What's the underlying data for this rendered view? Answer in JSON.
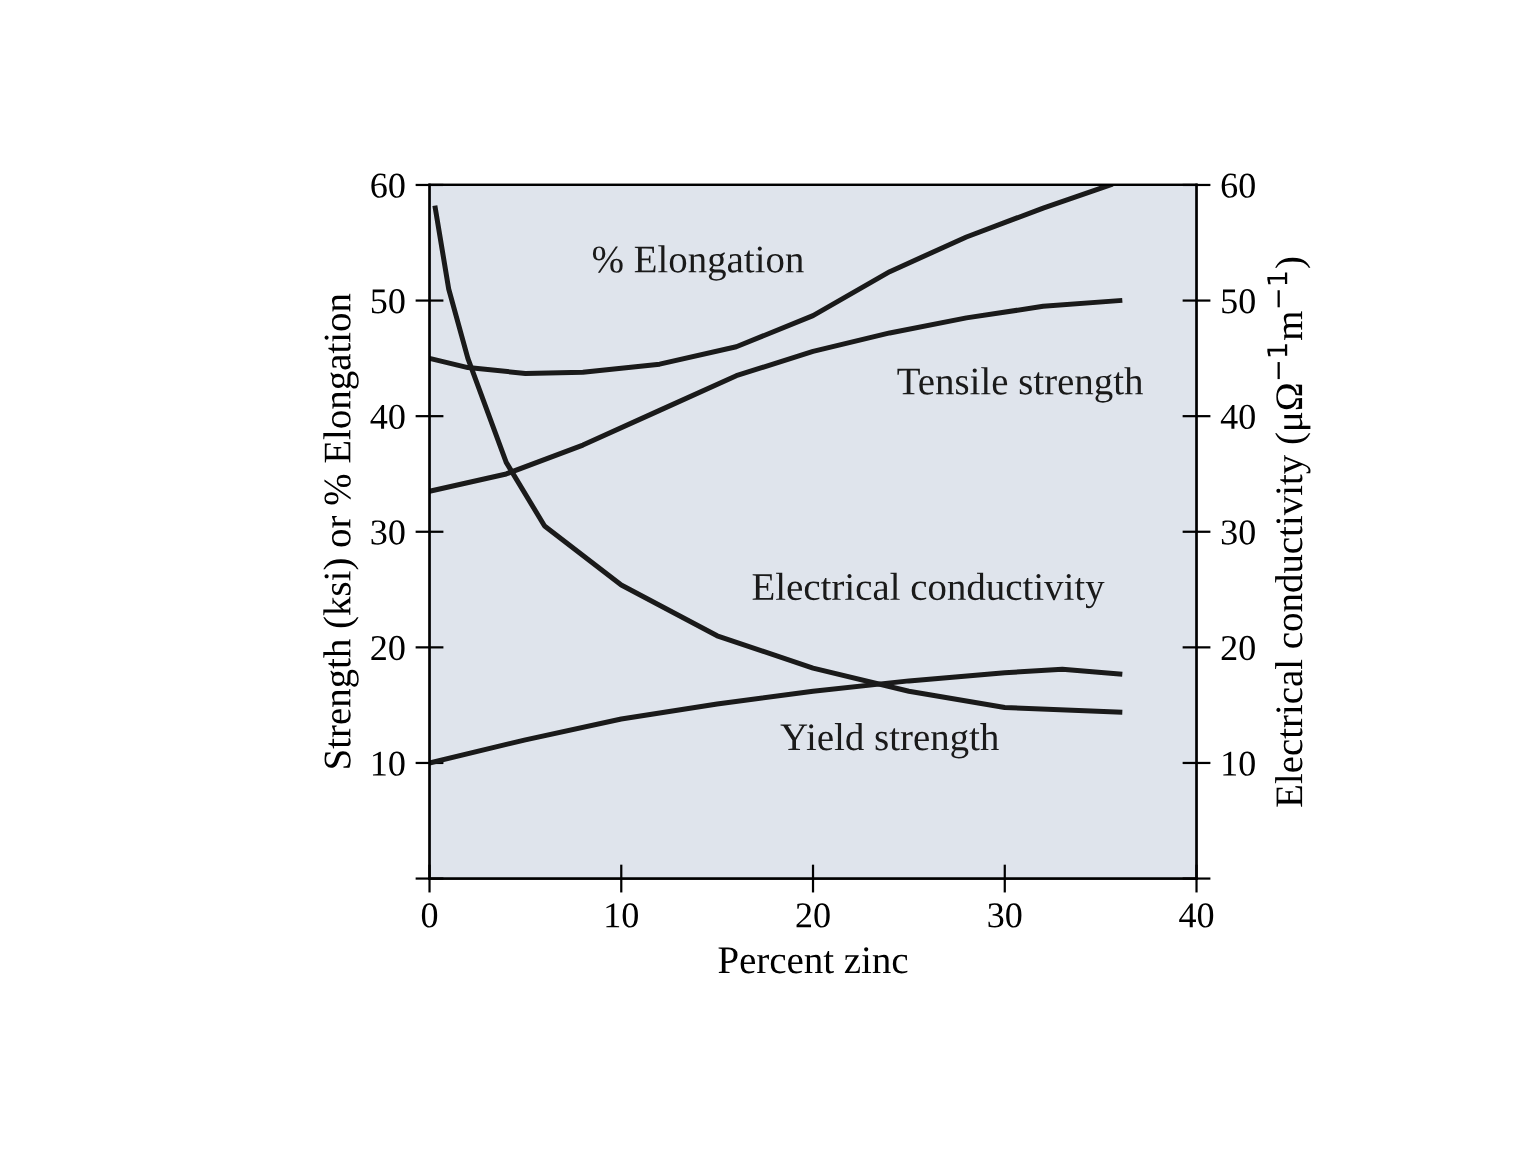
{
  "chart_data": {
    "type": "line",
    "xlabel": "Percent zinc",
    "ylabel": "Strength (ksi) or % Elongation",
    "y2label": "Electrical conductivity (μΩ$^{−1}$m$^{−1}$)",
    "xlim": [
      0,
      40
    ],
    "xticks": [
      0,
      10,
      20,
      30,
      40
    ],
    "ylim": [
      0,
      60
    ],
    "yticks": [
      {
        "value": 0,
        "label": null
      },
      10,
      20,
      30,
      40,
      50,
      60
    ],
    "y2lim": [
      0,
      60
    ],
    "y2ticks": [
      {
        "value": 0,
        "label": null
      },
      10,
      20,
      30,
      40,
      50,
      60
    ],
    "grid": false,
    "legend": false,
    "marker": "none",
    "line_style": "solid",
    "series": [
      {
        "name": "% Elongation",
        "color": "#1a1a1a",
        "x": [
          0,
          2,
          5,
          8,
          12,
          16,
          20,
          24,
          28,
          32,
          35.5
        ],
        "values": [
          45,
          44.2,
          43.7,
          43.8,
          44.5,
          46,
          48.7,
          52.5,
          55.5,
          58,
          60
        ]
      },
      {
        "name": "Tensile strength",
        "color": "#1a1a1a",
        "x": [
          0,
          4,
          8,
          12,
          16,
          20,
          24,
          28,
          32,
          36
        ],
        "values": [
          33.5,
          35,
          37.5,
          40.5,
          43.5,
          45.6,
          47.2,
          48.5,
          49.5,
          50
        ]
      },
      {
        "name": "Electrical conductivity",
        "color": "#1a1a1a",
        "x": [
          0.3,
          1,
          2,
          4,
          6,
          10,
          15,
          20,
          25,
          30,
          36
        ],
        "values": [
          58,
          51,
          45,
          36,
          30.5,
          25.4,
          21,
          18.2,
          16.2,
          14.8,
          14.4
        ]
      },
      {
        "name": "Yield strength",
        "color": "#1a1a1a",
        "x": [
          0,
          5,
          10,
          15,
          20,
          25,
          30,
          33,
          36
        ],
        "values": [
          10,
          12,
          13.8,
          15.1,
          16.2,
          17.1,
          17.8,
          18.1,
          17.7
        ]
      }
    ]
  }
}
